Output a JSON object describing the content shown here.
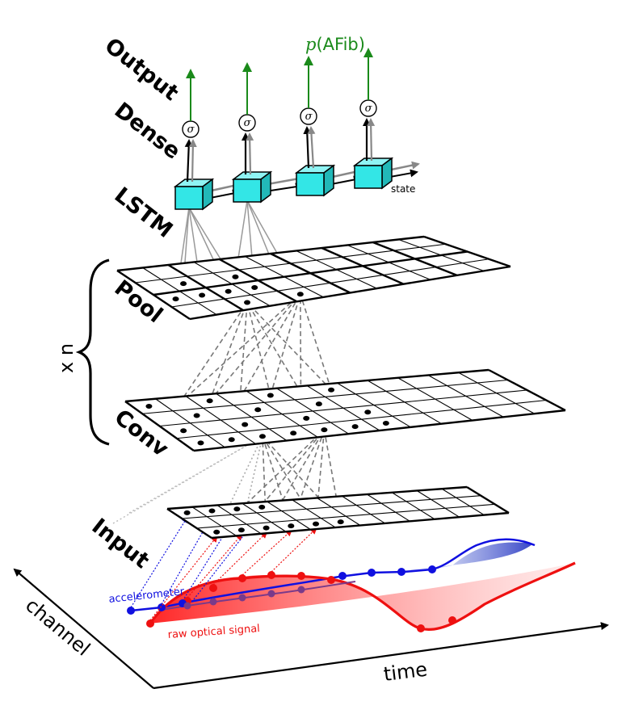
{
  "labels": {
    "output": "Output",
    "dense": "Dense",
    "lstm": "LSTM",
    "pool": "Pool",
    "conv": "Conv",
    "input": "Input",
    "repeat": "x n",
    "p_afib_prefix": "p",
    "p_afib_suffix": "(AFib)",
    "sigma": "σ",
    "state": "state",
    "accelerometer": "accelerometer",
    "raw_optical": "raw optical signal",
    "channel": "channel",
    "time": "time"
  },
  "colors": {
    "output_arrow": "#1a8a1a",
    "lstm_cell": "#33e6e6",
    "accelerometer": "#1010e0",
    "optical": "#ee1010",
    "processed": "#7a3a8a"
  }
}
